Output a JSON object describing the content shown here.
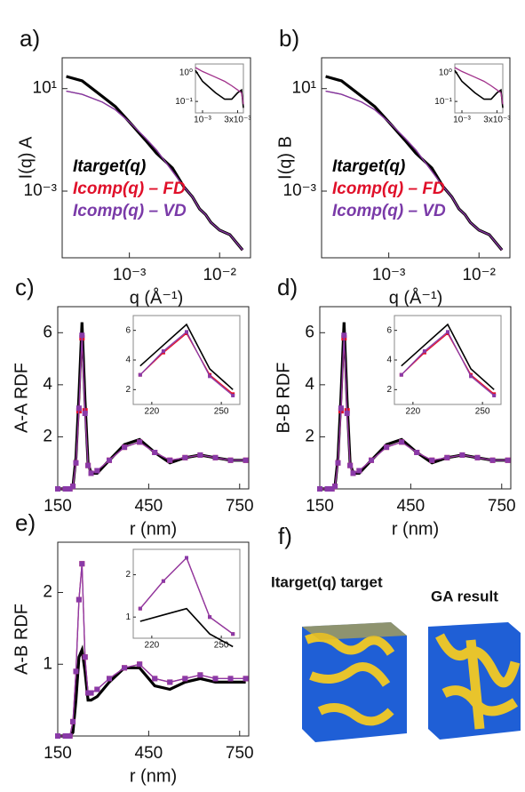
{
  "chart_data": [
    {
      "type": "line",
      "label": "a)",
      "y_label": "I(q) A",
      "x_label": "q (Å⁻¹)",
      "xscale": "log",
      "yscale": "log",
      "xlim": [
        0.00018,
        0.022
      ],
      "ylim": [
        2.5e-06,
        160
      ],
      "xticks": [
        {
          "value": 0.001,
          "label": "10⁻³"
        },
        {
          "value": 0.01,
          "label": "10⁻²"
        }
      ],
      "yticks": [
        {
          "value": 10,
          "label": "10¹"
        },
        {
          "value": 0.001,
          "label": "10⁻³"
        }
      ],
      "x": [
        0.0002,
        0.0003,
        0.0005,
        0.0007,
        0.001,
        0.0015,
        0.002,
        0.003,
        0.004,
        0.005,
        0.006,
        0.007,
        0.008,
        0.01,
        0.013,
        0.018
      ],
      "series": [
        {
          "name": "Itarget(q)",
          "color": "#000000",
          "values": [
            30,
            20,
            5,
            2,
            0.5,
            0.1,
            0.03,
            0.008,
            0.0015,
            0.0006,
            0.0002,
            0.00012,
            6e-05,
            3e-05,
            2e-05,
            5e-06
          ]
        },
        {
          "name": "Icomp(q) – FD",
          "color": "#e0102a",
          "values": [
            8,
            6,
            3,
            1.5,
            0.5,
            0.12,
            0.04,
            0.006,
            0.0015,
            0.0006,
            0.0002,
            0.00012,
            6e-05,
            3e-05,
            2e-05,
            5e-06
          ]
        },
        {
          "name": "Icomp(q) – VD",
          "color": "#7a3aa8",
          "values": [
            8,
            6,
            3,
            1.5,
            0.5,
            0.12,
            0.04,
            0.006,
            0.0015,
            0.0006,
            0.0002,
            0.00012,
            6e-05,
            3e-05,
            2e-05,
            5e-06
          ]
        }
      ]
    },
    {
      "type": "line",
      "xscale": "log",
      "yscale": "log",
      "xlim": [
        0.0008,
        0.0036
      ],
      "ylim": [
        0.04,
        2
      ],
      "xticks": [
        {
          "value": 0.001,
          "label": "10⁻³"
        },
        {
          "value": 0.003,
          "label": "3x10⁻³"
        }
      ],
      "yticks": [
        {
          "value": 1,
          "label": "10⁰"
        },
        {
          "value": 0.1,
          "label": "10⁻¹"
        }
      ],
      "x": [
        0.0008,
        0.001,
        0.0015,
        0.002,
        0.0025,
        0.003,
        0.0034,
        0.0036
      ],
      "series": [
        {
          "color": "#000000",
          "values": [
            1.2,
            0.5,
            0.2,
            0.12,
            0.12,
            0.2,
            0.25,
            0.06
          ]
        },
        {
          "color": "#a0308a",
          "values": [
            1.5,
            1.1,
            0.7,
            0.5,
            0.35,
            0.25,
            0.2,
            0.08
          ]
        }
      ]
    },
    {
      "type": "line",
      "label": "b)",
      "y_label": "I(q) B",
      "x_label": "q (Å⁻¹)",
      "xscale": "log",
      "yscale": "log",
      "xlim": [
        0.00018,
        0.022
      ],
      "ylim": [
        2.5e-06,
        160
      ],
      "xticks": [
        {
          "value": 0.001,
          "label": "10⁻³"
        },
        {
          "value": 0.01,
          "label": "10⁻²"
        }
      ],
      "yticks": [
        {
          "value": 10,
          "label": "10¹"
        },
        {
          "value": 0.001,
          "label": "10⁻³"
        }
      ],
      "x": [
        0.0002,
        0.0003,
        0.0005,
        0.0007,
        0.001,
        0.0015,
        0.002,
        0.003,
        0.004,
        0.005,
        0.006,
        0.007,
        0.008,
        0.01,
        0.013,
        0.018
      ],
      "series": [
        {
          "name": "Itarget(q)",
          "color": "#000000",
          "values": [
            30,
            20,
            5,
            2,
            0.5,
            0.1,
            0.03,
            0.008,
            0.0015,
            0.0006,
            0.0002,
            0.00012,
            6e-05,
            3e-05,
            2e-05,
            5e-06
          ]
        },
        {
          "name": "Icomp(q) – FD",
          "color": "#e0102a",
          "values": [
            8,
            6,
            3,
            1.5,
            0.5,
            0.12,
            0.04,
            0.006,
            0.0015,
            0.0006,
            0.0002,
            0.00012,
            6e-05,
            3e-05,
            2e-05,
            5e-06
          ]
        },
        {
          "name": "Icomp(q) – VD",
          "color": "#7a3aa8",
          "values": [
            8,
            6,
            3,
            1.5,
            0.5,
            0.12,
            0.04,
            0.006,
            0.0015,
            0.0006,
            0.0002,
            0.00012,
            6e-05,
            3e-05,
            2e-05,
            5e-06
          ]
        }
      ]
    },
    {
      "type": "line",
      "xscale": "log",
      "yscale": "log",
      "xlim": [
        0.0008,
        0.0036
      ],
      "ylim": [
        0.04,
        2
      ],
      "xticks": [
        {
          "value": 0.001,
          "label": "10⁻³"
        },
        {
          "value": 0.003,
          "label": "3x10⁻³"
        }
      ],
      "yticks": [
        {
          "value": 1,
          "label": "10⁰"
        },
        {
          "value": 0.1,
          "label": "10⁻¹"
        }
      ],
      "x": [
        0.0008,
        0.001,
        0.0015,
        0.002,
        0.0025,
        0.003,
        0.0034,
        0.0036
      ],
      "series": [
        {
          "color": "#000000",
          "values": [
            1.2,
            0.5,
            0.2,
            0.12,
            0.12,
            0.2,
            0.25,
            0.06
          ]
        },
        {
          "color": "#a0308a",
          "values": [
            1.5,
            1.1,
            0.7,
            0.5,
            0.35,
            0.25,
            0.2,
            0.08
          ]
        }
      ]
    },
    {
      "type": "line",
      "label": "c)",
      "y_label": "A-A RDF",
      "x_label": "r (nm)",
      "xlim": [
        150,
        780
      ],
      "ylim": [
        0,
        7
      ],
      "xticks": [
        150,
        450,
        750
      ],
      "yticks": [
        2,
        4,
        6
      ],
      "x": [
        150,
        175,
        190,
        200,
        210,
        220,
        230,
        240,
        250,
        260,
        280,
        320,
        370,
        420,
        470,
        520,
        570,
        620,
        670,
        720,
        770
      ],
      "series": [
        {
          "color": "#000000",
          "values": [
            0,
            0,
            0,
            0.1,
            1.2,
            3.6,
            6.4,
            3.4,
            1.0,
            0.6,
            0.6,
            1.1,
            1.7,
            1.9,
            1.4,
            1.0,
            1.2,
            1.3,
            1.2,
            1.1,
            1.1
          ]
        },
        {
          "color": "#e0102a",
          "marker": "square",
          "values": [
            0,
            0,
            0,
            0.1,
            1.0,
            3.0,
            5.8,
            3.0,
            0.9,
            0.6,
            0.7,
            1.1,
            1.6,
            1.8,
            1.4,
            1.1,
            1.2,
            1.3,
            1.2,
            1.1,
            1.1
          ]
        },
        {
          "color": "#8a3aa8",
          "marker": "square",
          "values": [
            0,
            0,
            0,
            0.1,
            1.0,
            3.1,
            5.9,
            2.9,
            0.9,
            0.6,
            0.7,
            1.1,
            1.6,
            1.8,
            1.4,
            1.1,
            1.2,
            1.3,
            1.2,
            1.1,
            1.1
          ]
        }
      ]
    },
    {
      "type": "line",
      "xlim": [
        212,
        258
      ],
      "ylim": [
        1,
        7
      ],
      "xticks": [
        220,
        250
      ],
      "yticks": [
        2,
        4,
        6
      ],
      "x": [
        215,
        225,
        235,
        245,
        255
      ],
      "series": [
        {
          "color": "#000000",
          "values": [
            3.6,
            5.0,
            6.4,
            3.4,
            2.0
          ]
        },
        {
          "color": "#e0102a",
          "marker": "square",
          "values": [
            3.0,
            4.5,
            5.8,
            3.0,
            1.7
          ]
        },
        {
          "color": "#8a3aa8",
          "marker": "square",
          "values": [
            3.0,
            4.6,
            5.9,
            2.9,
            1.6
          ]
        }
      ]
    },
    {
      "type": "line",
      "label": "d)",
      "y_label": "B-B RDF",
      "x_label": "r (nm)",
      "xlim": [
        150,
        780
      ],
      "ylim": [
        0,
        7
      ],
      "xticks": [
        150,
        450,
        750
      ],
      "yticks": [
        2,
        4,
        6
      ],
      "x": [
        150,
        175,
        190,
        200,
        210,
        220,
        230,
        240,
        250,
        260,
        280,
        320,
        370,
        420,
        470,
        520,
        570,
        620,
        670,
        720,
        770
      ],
      "series": [
        {
          "color": "#000000",
          "values": [
            0,
            0,
            0,
            0.1,
            1.2,
            3.6,
            6.4,
            3.4,
            1.0,
            0.6,
            0.6,
            1.1,
            1.7,
            1.9,
            1.4,
            1.0,
            1.2,
            1.3,
            1.2,
            1.1,
            1.1
          ]
        },
        {
          "color": "#e0102a",
          "marker": "square",
          "values": [
            0,
            0,
            0,
            0.1,
            1.0,
            3.0,
            5.8,
            3.0,
            0.9,
            0.6,
            0.7,
            1.1,
            1.6,
            1.8,
            1.4,
            1.1,
            1.2,
            1.3,
            1.2,
            1.1,
            1.1
          ]
        },
        {
          "color": "#8a3aa8",
          "marker": "square",
          "values": [
            0,
            0,
            0,
            0.1,
            1.0,
            3.1,
            5.9,
            2.9,
            0.9,
            0.6,
            0.7,
            1.1,
            1.6,
            1.8,
            1.4,
            1.1,
            1.2,
            1.3,
            1.2,
            1.1,
            1.1
          ]
        }
      ]
    },
    {
      "type": "line",
      "xlim": [
        212,
        258
      ],
      "ylim": [
        1,
        7
      ],
      "xticks": [
        220,
        250
      ],
      "yticks": [
        2,
        4,
        6
      ],
      "x": [
        215,
        225,
        235,
        245,
        255
      ],
      "series": [
        {
          "color": "#000000",
          "values": [
            3.6,
            5.0,
            6.4,
            3.4,
            2.0
          ]
        },
        {
          "color": "#e0102a",
          "marker": "square",
          "values": [
            3.0,
            4.5,
            5.8,
            3.0,
            1.7
          ]
        },
        {
          "color": "#8a3aa8",
          "marker": "square",
          "values": [
            3.0,
            4.6,
            5.9,
            2.9,
            1.6
          ]
        }
      ]
    },
    {
      "type": "line",
      "label": "e)",
      "y_label": "A-B RDF",
      "x_label": "r (nm)",
      "xlim": [
        150,
        780
      ],
      "ylim": [
        0,
        2.7
      ],
      "xticks": [
        150,
        450,
        750
      ],
      "yticks": [
        1,
        2
      ],
      "x": [
        150,
        175,
        190,
        200,
        210,
        220,
        230,
        240,
        250,
        260,
        280,
        320,
        370,
        420,
        470,
        520,
        570,
        620,
        670,
        720,
        770
      ],
      "series": [
        {
          "color": "#000000",
          "values": [
            0,
            0,
            0,
            0.05,
            0.5,
            1.1,
            1.2,
            0.9,
            0.5,
            0.5,
            0.55,
            0.75,
            0.95,
            0.95,
            0.7,
            0.65,
            0.75,
            0.8,
            0.75,
            0.75,
            0.75
          ]
        },
        {
          "color": "#e0102a",
          "marker": "square",
          "values": [
            0,
            0,
            0,
            0.2,
            0.9,
            1.9,
            2.4,
            1.1,
            0.6,
            0.6,
            0.65,
            0.8,
            0.95,
            1.0,
            0.8,
            0.75,
            0.8,
            0.85,
            0.8,
            0.8,
            0.8
          ]
        },
        {
          "color": "#8a3aa8",
          "marker": "square",
          "values": [
            0,
            0,
            0,
            0.2,
            0.9,
            1.9,
            2.4,
            1.1,
            0.6,
            0.6,
            0.65,
            0.8,
            0.95,
            1.0,
            0.8,
            0.75,
            0.8,
            0.85,
            0.8,
            0.8,
            0.8
          ]
        }
      ]
    },
    {
      "type": "line",
      "xlim": [
        212,
        258
      ],
      "ylim": [
        0.5,
        2.6
      ],
      "xticks": [
        220,
        250
      ],
      "yticks": [
        1,
        2
      ],
      "x": [
        215,
        225,
        235,
        245,
        255
      ],
      "series": [
        {
          "color": "#000000",
          "values": [
            0.9,
            1.05,
            1.2,
            0.6,
            0.3
          ]
        },
        {
          "color": "#e0102a",
          "marker": "square",
          "values": [
            1.2,
            1.85,
            2.4,
            1.0,
            0.6
          ]
        },
        {
          "color": "#8a3aa8",
          "marker": "square",
          "values": [
            1.2,
            1.85,
            2.4,
            1.0,
            0.6
          ]
        }
      ]
    }
  ],
  "panel_f": {
    "label": "f)",
    "captions": [
      "Itarget(q) target",
      "GA result"
    ]
  }
}
